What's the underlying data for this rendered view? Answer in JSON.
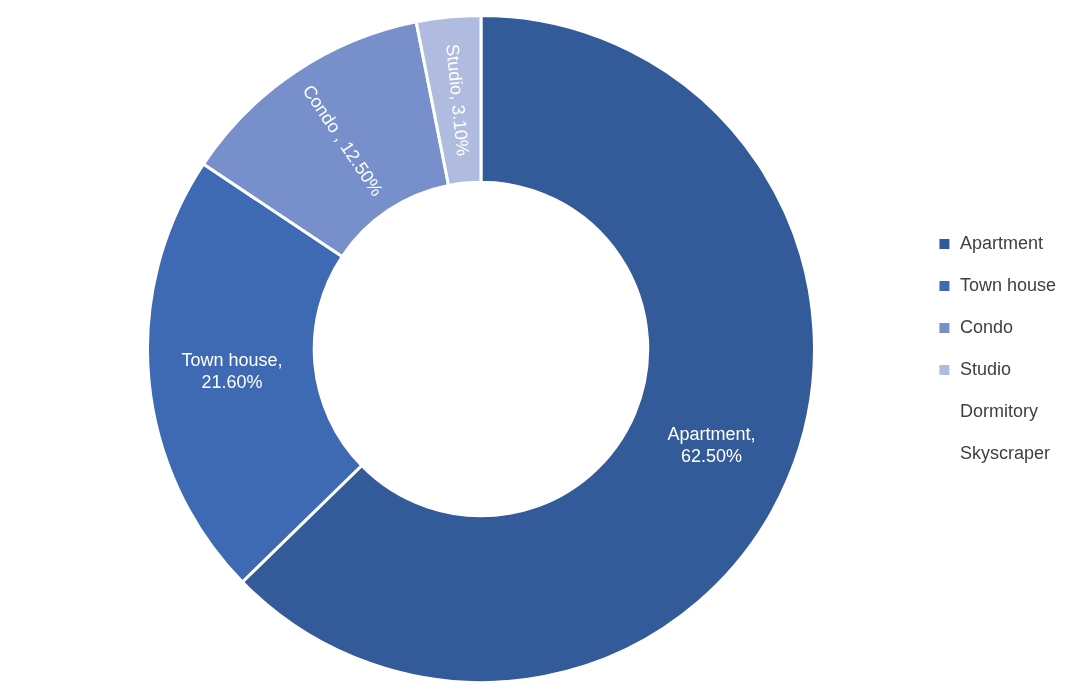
{
  "chart_data": {
    "type": "donut",
    "categories": [
      "Apartment",
      "Town house",
      "Condo",
      "Studio",
      "Dormitory",
      "Skyscraper"
    ],
    "values": [
      62.5,
      21.6,
      12.5,
      3.1,
      0,
      0
    ],
    "colors": [
      "#335a99",
      "#3e69b3",
      "#7790cc",
      "#b0bbe0",
      "#ffffff",
      "#ffffff"
    ],
    "value_labels": [
      "Apartment, 62.50%",
      "Town house, 21.60%",
      "Condo , 12.50%",
      "Studio, 3.10%",
      null,
      null
    ],
    "legend": "right"
  }
}
